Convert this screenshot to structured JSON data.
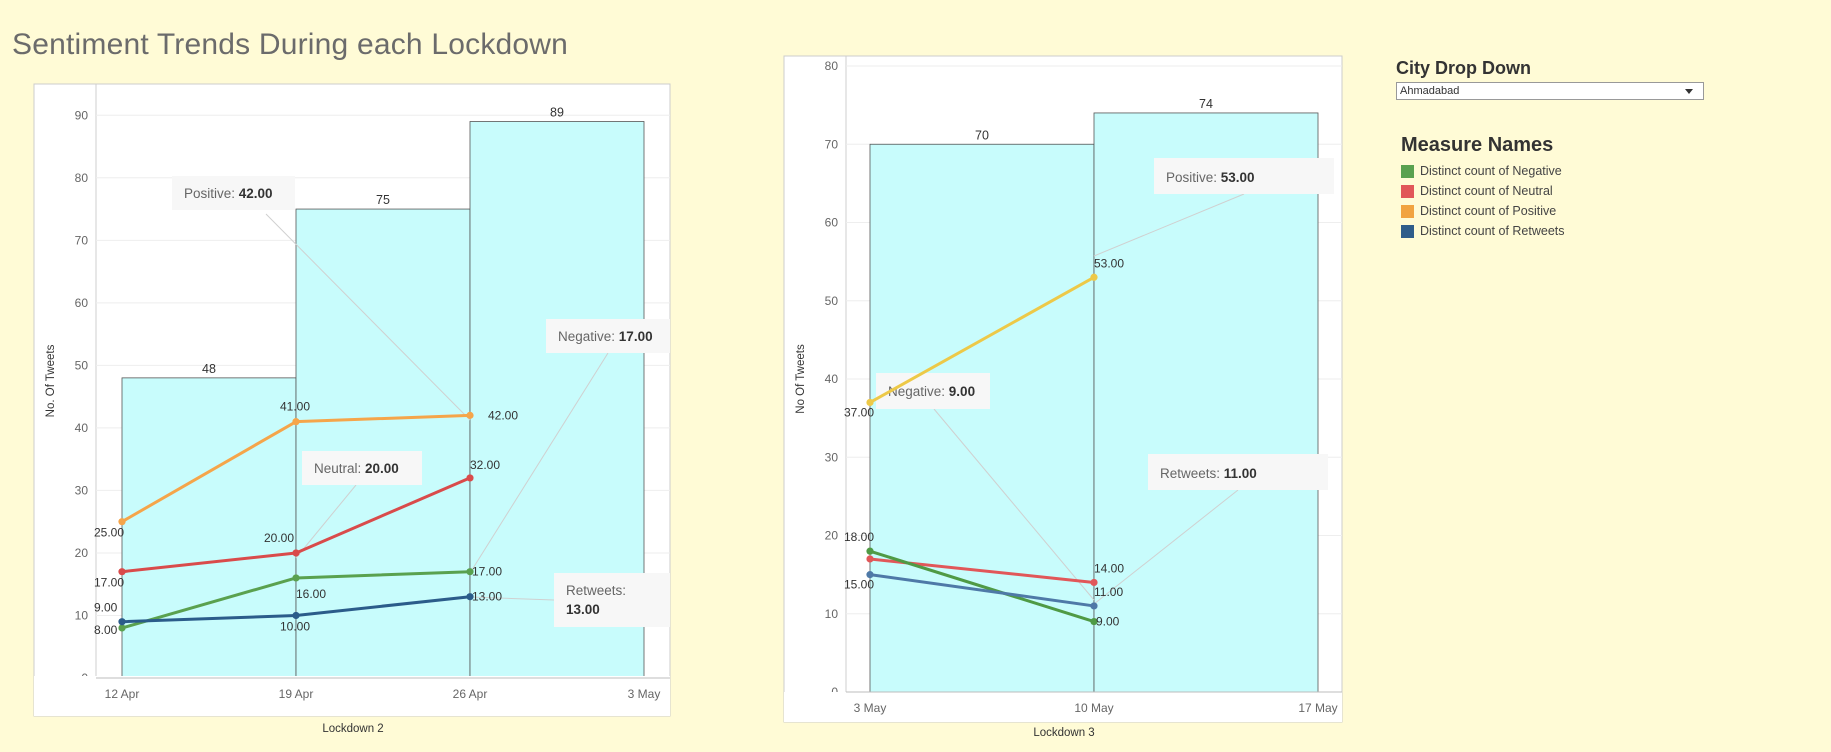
{
  "page_title": "Sentiment Trends During each Lockdown",
  "city_dropdown": {
    "label": "City Drop Down",
    "selected": "Ahmadabad"
  },
  "legend": {
    "title": "Measure Names",
    "items": [
      {
        "label": "Distinct count of Negative",
        "color": "#59a14f"
      },
      {
        "label": "Distinct count of Neutral",
        "color": "#e15759"
      },
      {
        "label": "Distinct count of Positive",
        "color": "#f1a340"
      },
      {
        "label": "Distinct count of Retweets",
        "color": "#2f5d8a"
      }
    ]
  },
  "chart_data": [
    {
      "type": "bar+line",
      "title": "",
      "xlabel": "Lockdown 2",
      "ylabel": "No. Of Tweets",
      "ylim": [
        0,
        95
      ],
      "yticks": [
        0,
        10,
        20,
        30,
        40,
        50,
        60,
        70,
        80,
        90
      ],
      "xticks": [
        "12 Apr",
        "19 Apr",
        "26 Apr",
        "3 May"
      ],
      "bars": {
        "values": [
          48,
          75,
          89
        ],
        "labels": [
          "48",
          "75",
          "89"
        ],
        "color": "#c8fcfc"
      },
      "series": [
        {
          "name": "Positive",
          "color": "#f5a54a",
          "values": [
            25,
            41,
            42
          ],
          "labels": [
            "25.00",
            "41.00",
            "42.00"
          ]
        },
        {
          "name": "Neutral",
          "color": "#d94b4b",
          "values": [
            17,
            20,
            32
          ],
          "labels": [
            "17.00",
            "20.00",
            "32.00"
          ]
        },
        {
          "name": "Negative",
          "color": "#5aa14f",
          "values": [
            8,
            16,
            17
          ],
          "labels": [
            "8.00",
            "16.00",
            "17.00"
          ]
        },
        {
          "name": "Retweets",
          "color": "#2b5c8a",
          "values": [
            9,
            10,
            13
          ],
          "labels": [
            "9.00",
            "10.00",
            "13.00"
          ]
        }
      ],
      "annotations": [
        {
          "label": "Positive:",
          "value": "42.00"
        },
        {
          "label": "Neutral:",
          "value": "20.00"
        },
        {
          "label": "Negative:",
          "value": "17.00"
        },
        {
          "label": "Retweets:",
          "value": "13.00"
        }
      ]
    },
    {
      "type": "bar+line",
      "title": "",
      "xlabel": "Lockdown 3",
      "ylabel": "No Of Tweets",
      "ylim": [
        0,
        80
      ],
      "yticks": [
        0,
        10,
        20,
        30,
        40,
        50,
        60,
        70,
        80
      ],
      "xticks": [
        "3 May",
        "10 May",
        "17 May"
      ],
      "bars": {
        "values": [
          70,
          74
        ],
        "labels": [
          "70",
          "74"
        ],
        "color": "#c8fcfc"
      },
      "series": [
        {
          "name": "Positive",
          "color": "#edc948",
          "values": [
            37,
            53
          ],
          "labels": [
            "37.00",
            "53.00"
          ]
        },
        {
          "name": "Neutral",
          "color": "#e15759",
          "values": [
            17,
            14
          ],
          "labels": [
            "",
            "14.00"
          ]
        },
        {
          "name": "Negative",
          "color": "#4f9a45",
          "values": [
            18,
            9
          ],
          "labels": [
            "18.00",
            "9.00"
          ]
        },
        {
          "name": "Retweets",
          "color": "#4e79a7",
          "values": [
            15,
            11
          ],
          "labels": [
            "15.00",
            "11.00"
          ]
        }
      ],
      "annotations": [
        {
          "label": "Positive:",
          "value": "53.00"
        },
        {
          "label": "Negative:",
          "value": "9.00"
        },
        {
          "label": "Retweets:",
          "value": "11.00"
        }
      ]
    }
  ]
}
